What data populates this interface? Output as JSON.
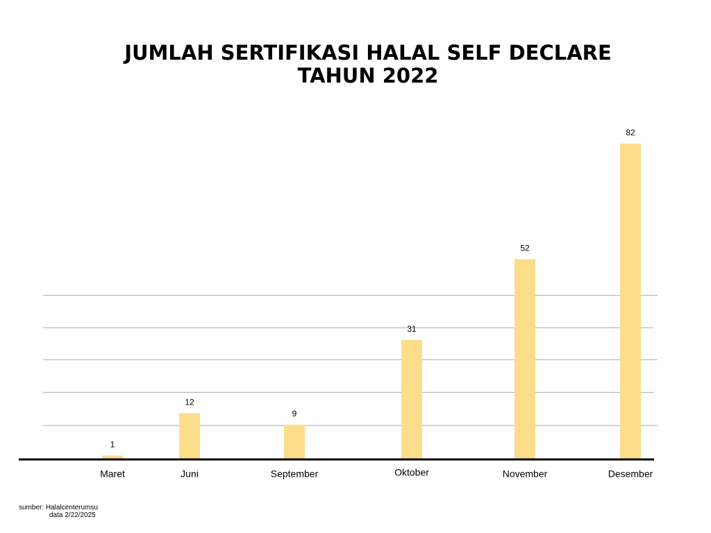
{
  "chart_data": {
    "type": "bar",
    "title_lines": [
      "JUMLAH SERTIFIKASI HALAL SELF DECLARE",
      "TAHUN 2022"
    ],
    "categories": [
      "Maret",
      "Juni",
      "September",
      "Oktober",
      "November",
      "Desember"
    ],
    "values": [
      1,
      12,
      9,
      31,
      52,
      82
    ],
    "data_labels": [
      "1",
      "12",
      "9",
      "31",
      "52",
      "82"
    ],
    "ylim": [
      0,
      85
    ],
    "gridlines": [
      8.8,
      17.4,
      25.9,
      34.2,
      42.6
    ],
    "grid": true,
    "legend": "none",
    "bar_color": "#fcdd8a"
  },
  "footer": {
    "source": "sumber: Halalcenterumsu",
    "date": "data 2/22/2025"
  }
}
